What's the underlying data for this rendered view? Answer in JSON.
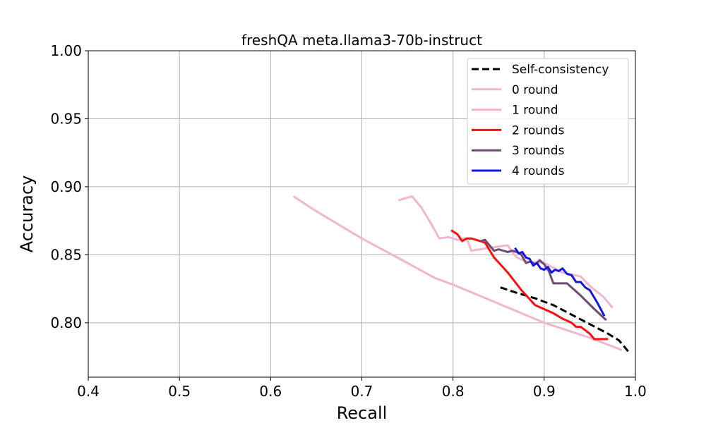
{
  "chart_data": {
    "type": "line",
    "title": "freshQA meta.llama3-70b-instruct",
    "xlabel": "Recall",
    "ylabel": "Accuracy",
    "xlim": [
      0.4,
      1.0
    ],
    "ylim": [
      0.76,
      1.0
    ],
    "xticks": [
      0.4,
      0.5,
      0.6,
      0.7,
      0.8,
      0.9,
      1.0
    ],
    "xtick_labels": [
      "0.4",
      "0.5",
      "0.6",
      "0.7",
      "0.8",
      "0.9",
      "1.0"
    ],
    "yticks": [
      0.8,
      0.85,
      0.9,
      0.95,
      1.0
    ],
    "ytick_labels": [
      "0.80",
      "0.85",
      "0.90",
      "0.95",
      "1.00"
    ],
    "grid": true,
    "legend_position": "top-right",
    "series": [
      {
        "name": "Self-consistency",
        "color": "#000000",
        "style": "dashed",
        "x": [
          0.852,
          0.87,
          0.89,
          0.91,
          0.93,
          0.95,
          0.97,
          0.982,
          0.992
        ],
        "y": [
          0.826,
          0.822,
          0.818,
          0.813,
          0.806,
          0.799,
          0.792,
          0.787,
          0.779
        ]
      },
      {
        "name": "0 round",
        "color": "#efb6d2",
        "style": "solid",
        "x": [
          0.625,
          0.65,
          0.7,
          0.75,
          0.78,
          0.8,
          0.85,
          0.9,
          0.95,
          0.985
        ],
        "y": [
          0.893,
          0.882,
          0.862,
          0.844,
          0.833,
          0.828,
          0.814,
          0.8,
          0.789,
          0.78
        ]
      },
      {
        "name": "1 round",
        "color": "#efb6d2",
        "style": "solid",
        "x": [
          0.74,
          0.755,
          0.765,
          0.775,
          0.785,
          0.795,
          0.805,
          0.815,
          0.82,
          0.84,
          0.86,
          0.865,
          0.87,
          0.88,
          0.9,
          0.92,
          0.94,
          0.95,
          0.965,
          0.975
        ],
        "y": [
          0.89,
          0.893,
          0.885,
          0.874,
          0.862,
          0.863,
          0.861,
          0.862,
          0.853,
          0.855,
          0.857,
          0.852,
          0.848,
          0.845,
          0.844,
          0.837,
          0.834,
          0.827,
          0.819,
          0.811
        ]
      },
      {
        "name": "2 rounds",
        "color": "#ff0d0d",
        "style": "solid",
        "x": [
          0.798,
          0.805,
          0.81,
          0.815,
          0.82,
          0.83,
          0.835,
          0.845,
          0.86,
          0.875,
          0.89,
          0.91,
          0.92,
          0.93,
          0.935,
          0.94,
          0.95,
          0.955,
          0.96,
          0.97
        ],
        "y": [
          0.868,
          0.865,
          0.86,
          0.862,
          0.862,
          0.86,
          0.859,
          0.848,
          0.837,
          0.824,
          0.813,
          0.807,
          0.803,
          0.8,
          0.797,
          0.797,
          0.792,
          0.788,
          0.788,
          0.788
        ]
      },
      {
        "name": "3 rounds",
        "color": "#6e4a74",
        "style": "solid",
        "x": [
          0.83,
          0.835,
          0.84,
          0.845,
          0.85,
          0.855,
          0.86,
          0.865,
          0.87,
          0.875,
          0.88,
          0.885,
          0.89,
          0.895,
          0.9,
          0.905,
          0.91,
          0.925,
          0.94,
          0.955,
          0.968
        ],
        "y": [
          0.86,
          0.861,
          0.857,
          0.853,
          0.854,
          0.853,
          0.852,
          0.853,
          0.852,
          0.85,
          0.844,
          0.845,
          0.843,
          0.846,
          0.843,
          0.838,
          0.829,
          0.829,
          0.82,
          0.81,
          0.802
        ]
      },
      {
        "name": "4 rounds",
        "color": "#1414e6",
        "style": "solid",
        "x": [
          0.868,
          0.872,
          0.876,
          0.88,
          0.884,
          0.888,
          0.892,
          0.896,
          0.9,
          0.904,
          0.908,
          0.912,
          0.916,
          0.92,
          0.925,
          0.93,
          0.935,
          0.94,
          0.945,
          0.95,
          0.958,
          0.966
        ],
        "y": [
          0.855,
          0.851,
          0.852,
          0.848,
          0.847,
          0.842,
          0.844,
          0.84,
          0.839,
          0.841,
          0.837,
          0.839,
          0.838,
          0.84,
          0.836,
          0.835,
          0.83,
          0.83,
          0.826,
          0.824,
          0.815,
          0.805
        ]
      }
    ]
  }
}
